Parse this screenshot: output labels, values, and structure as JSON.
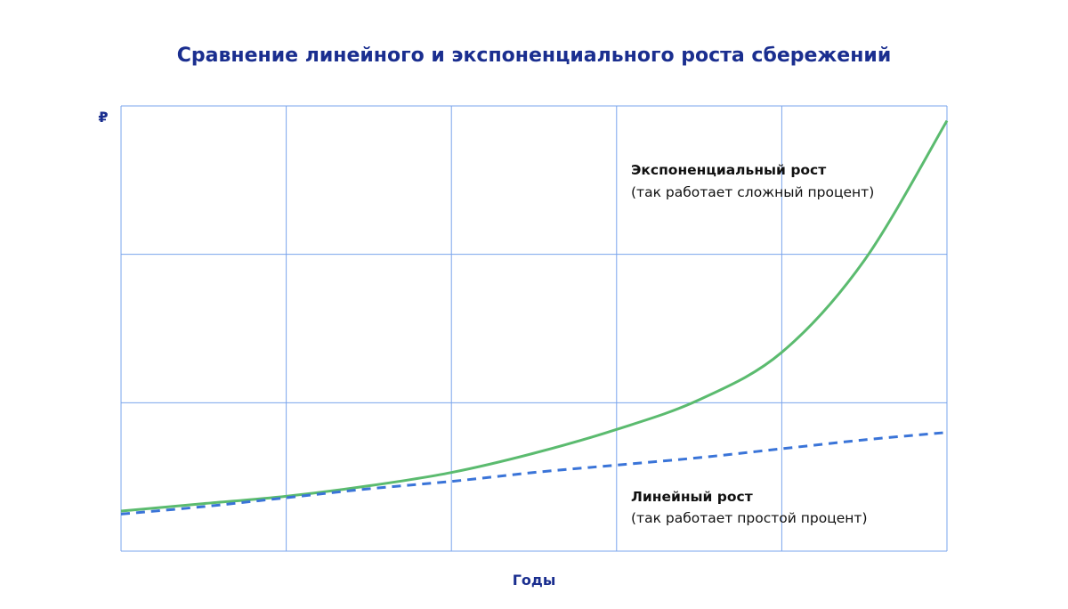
{
  "chart_data": {
    "type": "line",
    "title": "Сравнение линейного и экспоненциального роста сбережений",
    "xlabel": "Годы",
    "ylabel": "₽",
    "xlim": [
      0,
      5
    ],
    "ylim": [
      0,
      3
    ],
    "grid": true,
    "x": [
      0,
      0.5,
      1,
      1.5,
      2,
      2.5,
      3,
      3.5,
      4,
      4.5,
      5
    ],
    "series": [
      {
        "id": "exponential",
        "style": "solid",
        "color": "#5bbb6f",
        "values": [
          0.27,
          0.32,
          0.37,
          0.44,
          0.53,
          0.66,
          0.82,
          1.02,
          1.34,
          1.96,
          2.9
        ]
      },
      {
        "id": "linear",
        "style": "dashed",
        "color": "#3a74d8",
        "values": [
          0.25,
          0.3,
          0.36,
          0.42,
          0.47,
          0.53,
          0.58,
          0.63,
          0.69,
          0.75,
          0.8
        ]
      }
    ],
    "annotations": [
      {
        "series": "exponential",
        "bold": "Экспоненциальный рост",
        "normal": "(так работает сложный процент)"
      },
      {
        "series": "linear",
        "bold": "Линейный рост",
        "normal": "(так работает простой процент)"
      }
    ]
  },
  "colors": {
    "title": "#1a2e8f",
    "grid": "#7aa4ec"
  }
}
